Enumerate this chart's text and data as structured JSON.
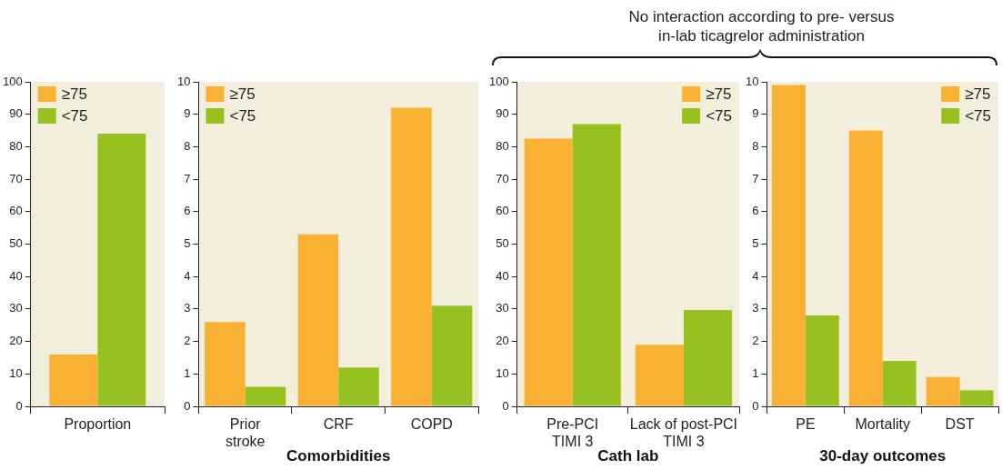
{
  "chart_data": [
    {
      "type": "bar",
      "categories": [
        "Proportion"
      ],
      "series": [
        {
          "name": "≥75",
          "color": "#f8b133",
          "values": [
            16
          ]
        },
        {
          "name": "<75",
          "color": "#97c11f",
          "values": [
            84
          ]
        }
      ],
      "ylim": [
        0,
        100
      ],
      "yticks": [
        0,
        10,
        20,
        30,
        40,
        50,
        60,
        70,
        80,
        90,
        100
      ],
      "grid": false,
      "legend": "top left"
    },
    {
      "type": "bar",
      "categories": [
        "Prior\nstroke",
        "CRF",
        "COPD"
      ],
      "xlabel": "Comorbidities",
      "series": [
        {
          "name": "≥75",
          "color": "#f8b133",
          "values": [
            2.6,
            5.3,
            9.2
          ]
        },
        {
          "name": "<75",
          "color": "#97c11f",
          "values": [
            0.6,
            1.2,
            3.1
          ]
        }
      ],
      "ylim": [
        0,
        10
      ],
      "yticks": [
        0,
        1,
        2,
        3,
        4,
        5,
        6,
        7,
        8,
        9,
        10
      ],
      "grid": false,
      "legend": "top left"
    },
    {
      "type": "bar",
      "categories": [
        "Pre-PCI\nTIMI 3",
        "Lack of post-PCI\nTIMI 3"
      ],
      "xlabel": "Cath lab",
      "series": [
        {
          "name": "≥75",
          "color": "#f8b133",
          "values": [
            82.5,
            19
          ]
        },
        {
          "name": "<75",
          "color": "#97c11f",
          "values": [
            87,
            29.7
          ]
        }
      ],
      "ylim": [
        0,
        100
      ],
      "yticks": [
        0,
        10,
        20,
        30,
        40,
        50,
        60,
        70,
        80,
        90,
        100
      ],
      "grid": false,
      "legend": "top right",
      "annotations": [
        "No interaction according to pre- versus\nin-lab ticagrelor administration"
      ]
    },
    {
      "type": "bar",
      "categories": [
        "PE",
        "Mortality",
        "DST"
      ],
      "xlabel": "30-day outcomes",
      "series": [
        {
          "name": "≥75",
          "color": "#f8b133",
          "values": [
            9.9,
            8.5,
            0.9
          ]
        },
        {
          "name": "<75",
          "color": "#97c11f",
          "values": [
            2.8,
            1.4,
            0.5
          ]
        }
      ],
      "ylim": [
        0,
        10
      ],
      "yticks": [
        0,
        1,
        2,
        3,
        4,
        5,
        6,
        7,
        8,
        9,
        10
      ],
      "grid": false,
      "legend": "top right"
    }
  ]
}
